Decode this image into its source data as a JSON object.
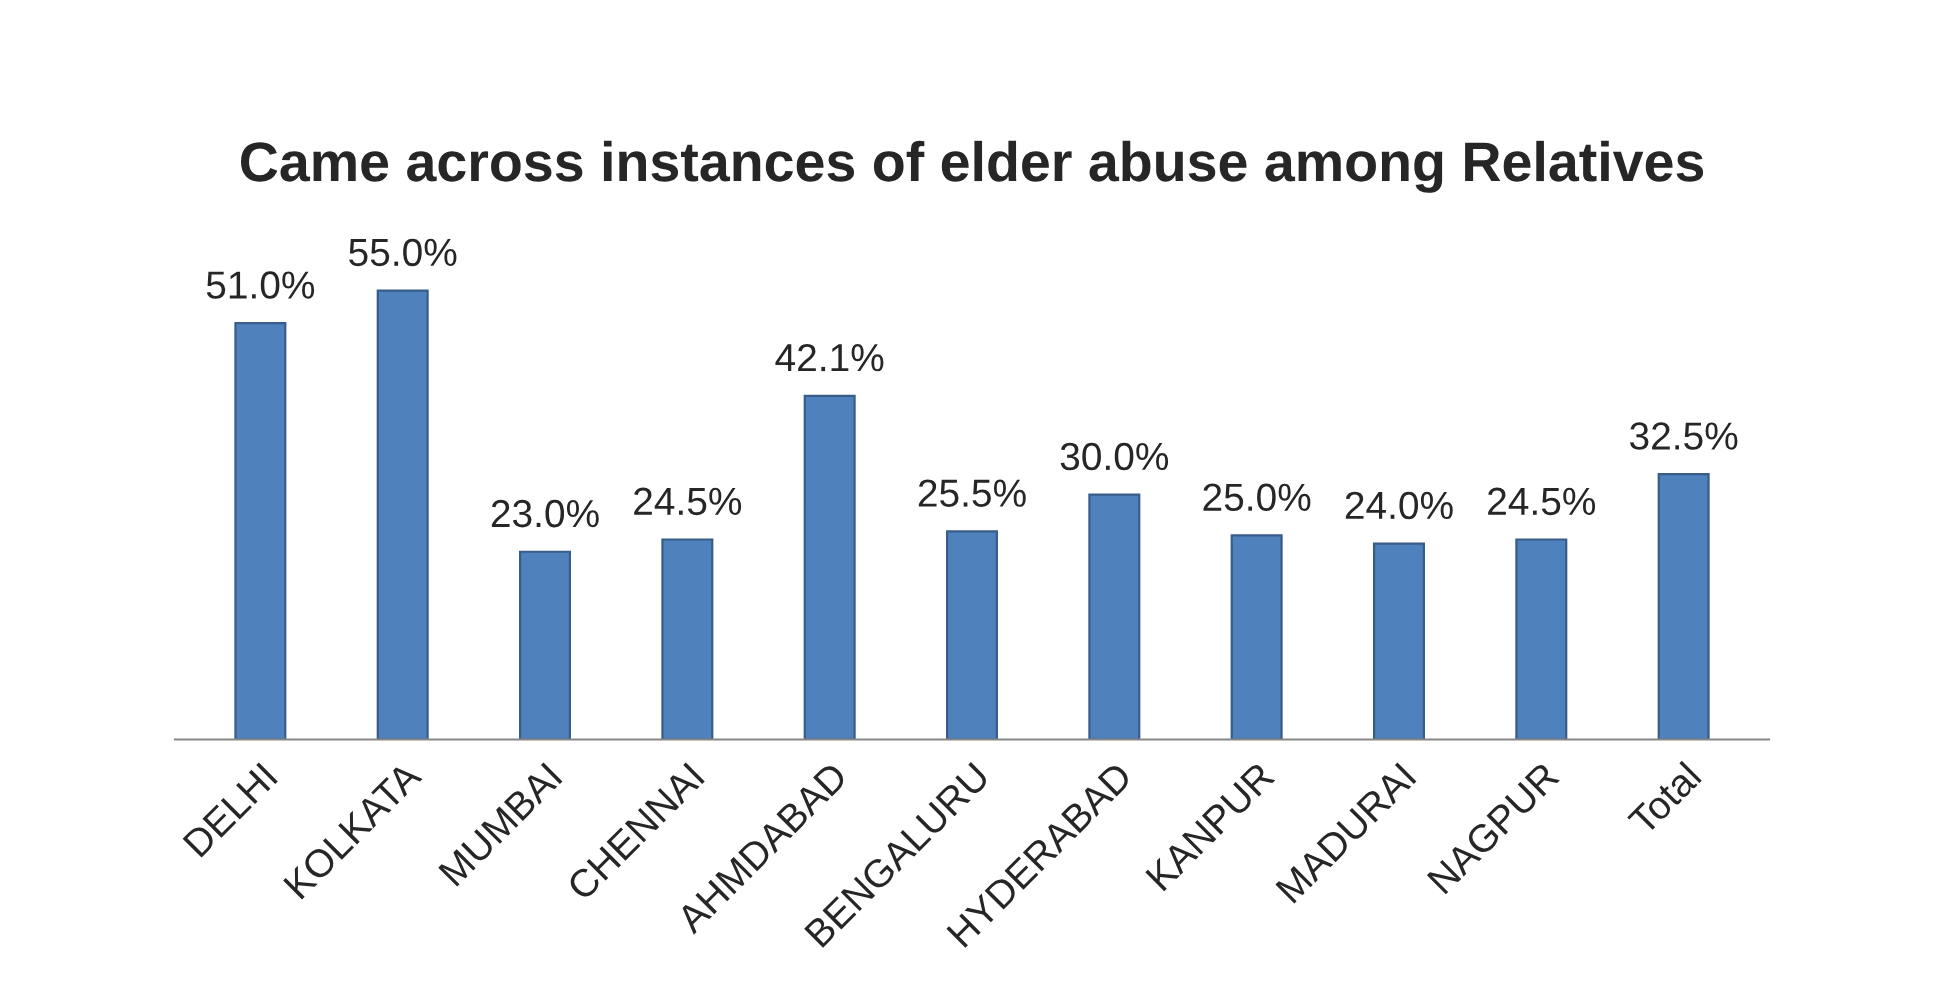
{
  "chart_data": {
    "type": "bar",
    "title": "Came across instances of elder abuse among Relatives",
    "categories": [
      "DELHI",
      "KOLKATA",
      "MUMBAI",
      "CHENNAI",
      "AHMDABAD",
      "BENGALURU",
      "HYDERABAD",
      "KANPUR",
      "MADURAI",
      "NAGPUR",
      "Total"
    ],
    "values": [
      51.0,
      55.0,
      23.0,
      24.5,
      42.1,
      25.5,
      30.0,
      25.0,
      24.0,
      24.5,
      32.5
    ],
    "value_labels": [
      "51.0%",
      "55.0%",
      "23.0%",
      "24.5%",
      "42.1%",
      "25.5%",
      "30.0%",
      "25.0%",
      "24.0%",
      "24.5%",
      "32.5%"
    ],
    "color": "#4f81bd",
    "grid": false,
    "legend": false
  }
}
